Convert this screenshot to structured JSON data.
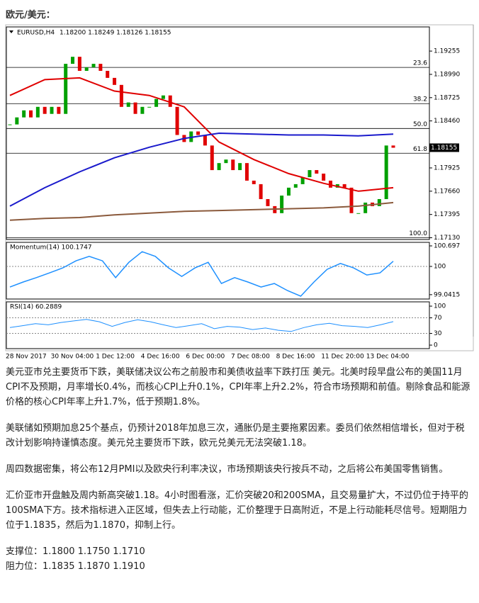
{
  "header": {
    "title": "欧元/美元："
  },
  "chart": {
    "type": "candlestick",
    "title": "EURUSD,H4",
    "ohlc_label": "1.18200 1.18249 1.18126 1.18155",
    "closes": [
      1.1842,
      1.185,
      1.1858,
      1.185,
      1.1862,
      1.1854,
      1.1862,
      1.1854,
      1.1911,
      1.1919,
      1.1903,
      1.1907,
      1.1911,
      1.1903,
      1.1895,
      1.1887,
      1.1862,
      1.1867,
      1.1854,
      1.1862,
      1.1862,
      1.1871,
      1.1875,
      1.1862,
      1.183,
      1.1822,
      1.1834,
      1.183,
      1.1818,
      1.179,
      1.1798,
      1.1802,
      1.179,
      1.1798,
      1.1778,
      1.1774,
      1.1757,
      1.1749,
      1.1741,
      1.1761,
      1.177,
      1.1774,
      1.1782,
      1.179,
      1.1786,
      1.1778,
      1.177,
      1.1774,
      1.177,
      1.1741,
      1.1741,
      1.1753,
      1.1749,
      1.1757,
      1.1818,
      1.18155
    ],
    "up_color": "#00a000",
    "down_color": "#e00000",
    "ma": [
      {
        "name": "MA20",
        "color": "#e00000",
        "values": [
          1.1875,
          1.1893,
          1.1895,
          1.188,
          1.1875,
          1.1862,
          1.1822,
          1.1802,
          1.1786,
          1.1775,
          1.1766,
          1.177
        ]
      },
      {
        "name": "MA100",
        "color": "#1a1acc",
        "values": [
          1.1749,
          1.177,
          1.1788,
          1.1804,
          1.1816,
          1.1826,
          1.1832,
          1.1831,
          1.183,
          1.183,
          1.1829,
          1.1831
        ]
      },
      {
        "name": "MA200",
        "color": "#8b5a3c",
        "values": [
          1.1733,
          1.1735,
          1.1736,
          1.1739,
          1.1741,
          1.1743,
          1.1744,
          1.1745,
          1.1746,
          1.1747,
          1.1749,
          1.1753
        ]
      }
    ],
    "ylim": [
      1.1711,
      1.1953
    ],
    "yticks": [
      1.19255,
      {
        "value": 1.1899,
        "label": "1.18990"
      },
      1.18725,
      {
        "value": 1.1846,
        "label": "1.18460"
      },
      1.17925,
      {
        "value": 1.1766,
        "label": "1.17660"
      },
      1.17395,
      {
        "value": 1.1713,
        "label": "1.17130"
      }
    ],
    "fib": [
      {
        "value": 1.19069,
        "label": "23.6"
      },
      {
        "value": 1.18657,
        "label": "38.2"
      },
      {
        "value": 1.18374,
        "label": "50.0"
      },
      {
        "value": 1.18092,
        "label": "61.8"
      },
      {
        "value": 1.1713,
        "label": "100.0"
      }
    ],
    "momentum": {
      "title": "Momentum(14) 100.1747",
      "color": "#1e90ff",
      "ylim": [
        98.894,
        100.817
      ],
      "yticks": [
        100.697,
        100,
        99.0415
      ],
      "level": 100,
      "values": [
        99.3,
        99.47,
        99.62,
        99.78,
        99.95,
        100.19,
        100.34,
        100.19,
        99.62,
        100.14,
        100.5,
        100.34,
        99.95,
        99.66,
        99.95,
        100.14,
        99.42,
        99.62,
        99.47,
        99.3,
        99.42,
        99.18,
        98.99,
        99.47,
        99.9,
        100.1,
        99.95,
        99.71,
        99.78,
        100.1747
      ]
    },
    "rsi": {
      "title": "RSI(14) 60.2889",
      "color": "#1e90ff",
      "ylim": [
        -9,
        111
      ],
      "yticks": [
        100,
        70,
        30,
        0
      ],
      "levels": [
        70,
        30
      ],
      "values": [
        45,
        50,
        55,
        52,
        58,
        62,
        66,
        60,
        48,
        58,
        65,
        60,
        52,
        45,
        50,
        55,
        42,
        48,
        46,
        40,
        44,
        38,
        35,
        45,
        52,
        56,
        50,
        48,
        45,
        52,
        60.2889
      ]
    },
    "categories": [
      "28 Nov 2017",
      "30 Nov 04:00",
      "1 Dec 12:00",
      "4 Dec 16:00",
      "6 Dec 00:00",
      "7 Dec 08:00",
      "8 Dec 16:00",
      "11 Dec 20:00",
      "13 Dec 04:00"
    ]
  },
  "body": {
    "paragraphs": [
      "美元亚市兑主要货币下跌，美联储决议公布之前股市和美债收益率下跌打压 美元。北美时段早盘公布的美国11月CPI不及预期，月率增长0.4%，而核心CPI上升0.1%，CPI年率上升2.2%，符合市场预期和前值。剔除食品和能源价格的核心CPI年率上升1.7%，低于预期1.8%。",
      "美联储如预期加息25个基点，仍预计2018年加息三次，通胀仍是主要拖累因素。委员们依然相信增长，但对于税改计划影响持谨慎态度。美元兑主要货币下跌，欧元兑美元无法突破1.18。",
      "周四数据密集，将公布12月PMI以及欧央行利率决议，市场预期该央行按兵不动，之后将公布美国零售销售。",
      "汇价亚市开盘触及周内新高突破1.18。4小时图看涨，汇价突破20和200SMA，且交易量扩大，不过仍位于持平的100SMA下方。技术指标进入正区域，但失去上行动能，汇价整理于日高附近，不是上行动能耗尽信号。短期阻力位于1.1835，然后为1.1870，抑制上行。"
    ],
    "support": "支撑位：1.1800 1.1750 1.1710",
    "resistance": "阻力位：1.1835 1.1870 1.1910"
  }
}
